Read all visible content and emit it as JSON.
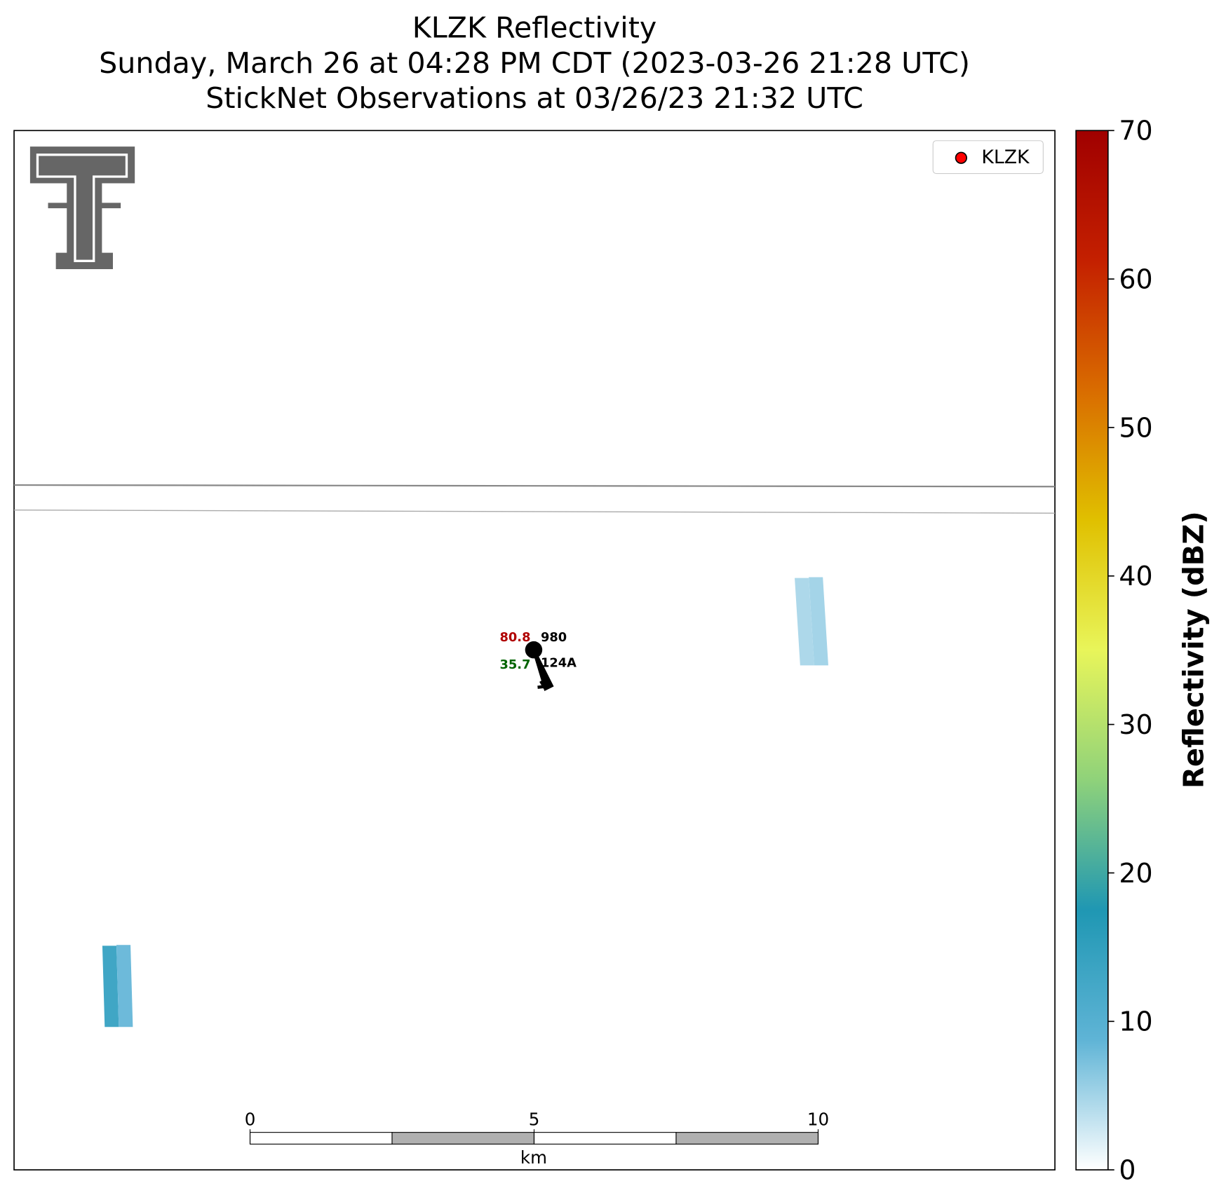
{
  "chart_data": {
    "type": "radar",
    "title": [
      "KLZK Reflectivity",
      "Sunday, March 26 at 04:28 PM CDT (2023-03-26 21:28 UTC)",
      "StickNet Observations at 03/26/23 21:32 UTC"
    ],
    "legend": {
      "label": "KLZK",
      "color": "#ff0000",
      "corner": "upper right"
    },
    "colorbar": {
      "label": "Reflectivity (dBZ)",
      "lim": [
        0,
        70
      ],
      "ticks": [
        0,
        10,
        20,
        30,
        40,
        50,
        60,
        70
      ],
      "colors": [
        "#ffffff",
        "#5fb4d6",
        "#1f97b3",
        "#8fd27a",
        "#e8f55a",
        "#e0c000",
        "#d96c00",
        "#c42000",
        "#a00000"
      ]
    },
    "reflectivity_values": [
      4.5,
      5,
      13,
      8
    ],
    "station": {
      "temperature": 80.8,
      "pressure": 980,
      "dewpoint": 35.7,
      "id": "124A"
    },
    "scalebar": {
      "unit": "km",
      "ticks": [
        0,
        5,
        10
      ]
    }
  }
}
